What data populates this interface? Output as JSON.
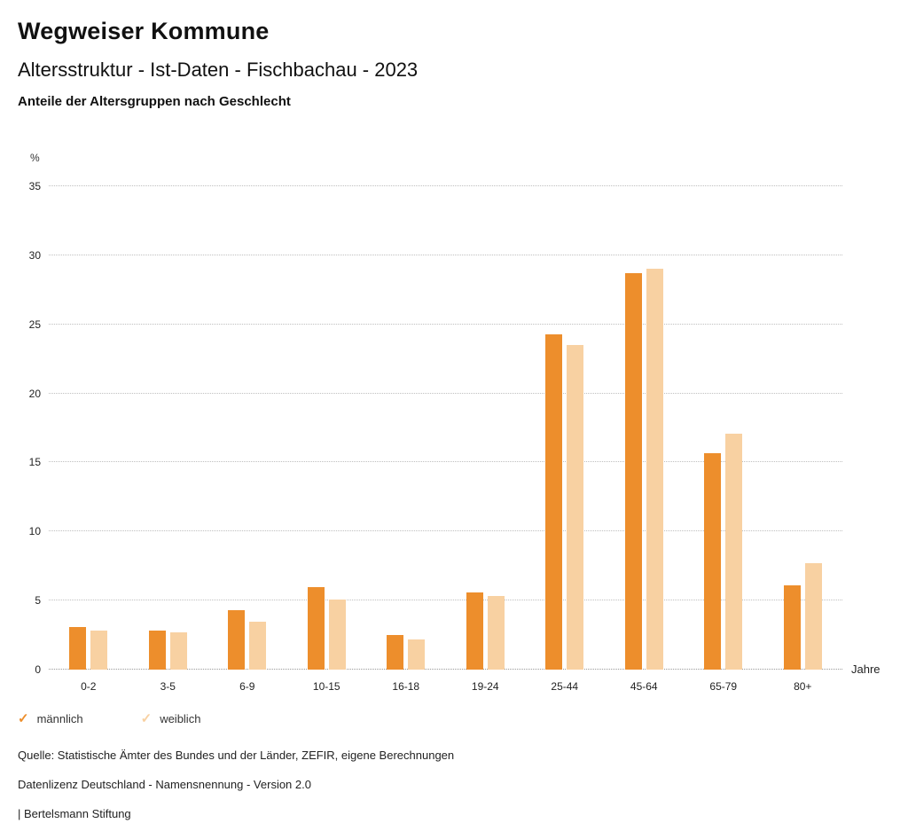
{
  "header": {
    "title": "Wegweiser Kommune",
    "subtitle": "Altersstruktur - Ist-Daten - Fischbachau - 2023",
    "caption": "Anteile der Altersgruppen nach Geschlecht"
  },
  "chart_data": {
    "type": "bar",
    "title": "Anteile der Altersgruppen nach Geschlecht",
    "unit_label": "%",
    "x_unit_label": "Jahre",
    "categories": [
      "0-2",
      "3-5",
      "6-9",
      "10-15",
      "16-18",
      "19-24",
      "25-44",
      "45-64",
      "65-79",
      "80+"
    ],
    "series": [
      {
        "name": "männlich",
        "color": "#ED8E2C",
        "values": [
          3.1,
          2.8,
          4.3,
          6.0,
          2.5,
          5.6,
          24.3,
          28.7,
          15.7,
          6.1
        ]
      },
      {
        "name": "weiblich",
        "color": "#F8D1A2",
        "values": [
          2.8,
          2.7,
          3.5,
          5.1,
          2.2,
          5.3,
          23.5,
          29.0,
          17.1,
          7.7
        ]
      }
    ],
    "yticks": [
      0,
      5,
      10,
      15,
      20,
      25,
      30,
      35
    ],
    "ylim": [
      0,
      35
    ],
    "grid": "dotted horizontal",
    "legend_position": "bottom-left"
  },
  "legend": {
    "items": [
      {
        "label": "männlich",
        "color": "#ED8E2C",
        "check": "✓"
      },
      {
        "label": "weiblich",
        "color": "#F8D1A2",
        "check": "✓"
      }
    ]
  },
  "footer": {
    "source": "Quelle: Statistische Ämter des Bundes und der Länder, ZEFIR, eigene Berechnungen",
    "license": "Datenlizenz Deutschland - Namensnennung - Version 2.0",
    "attribution": "| Bertelsmann Stiftung"
  }
}
